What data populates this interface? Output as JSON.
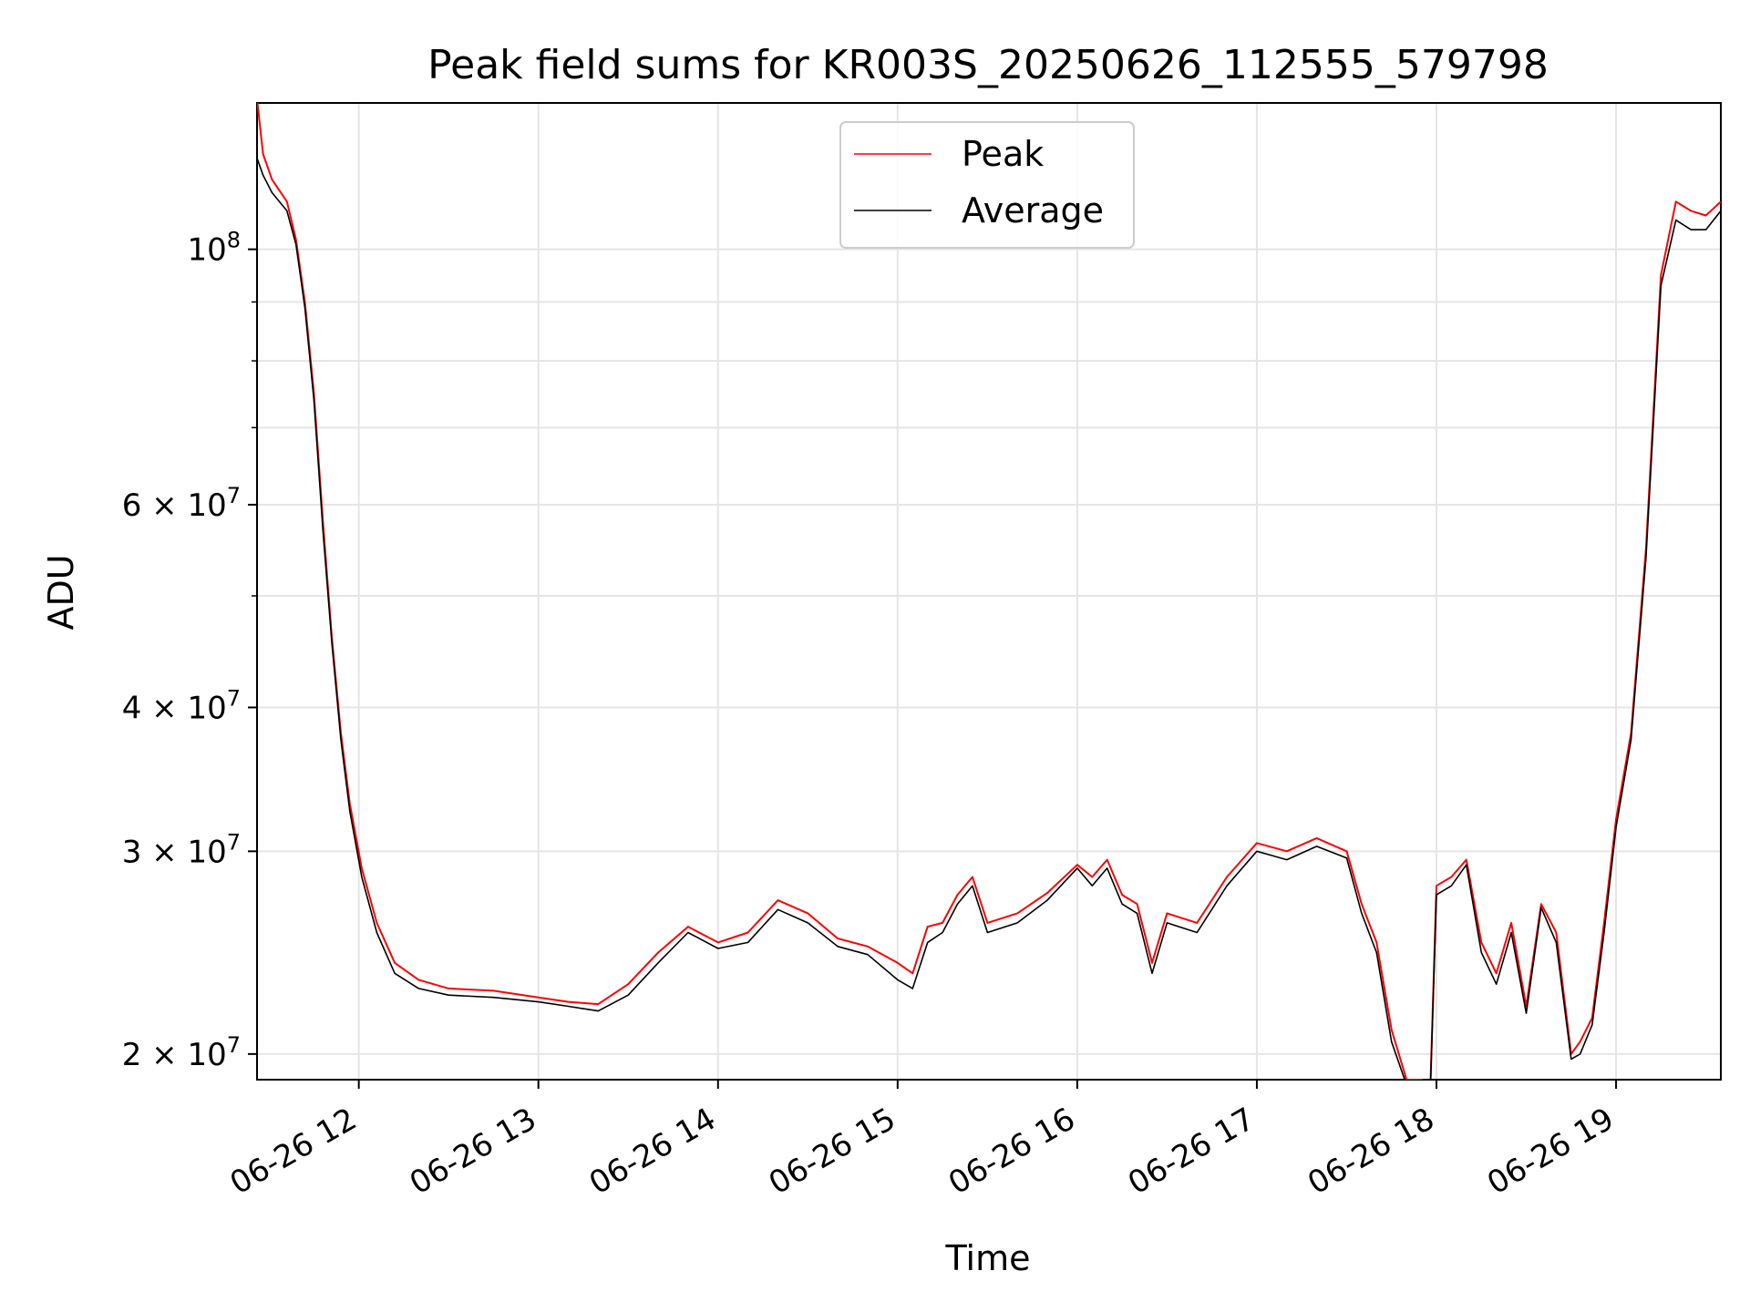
{
  "chart_data": {
    "type": "line",
    "title": "Peak field sums for KR003S_20250626_112555_579798",
    "xlabel": "Time",
    "ylabel": "ADU",
    "yscale": "log",
    "xlim": [
      "06-26 11:26",
      "06-26 19:35"
    ],
    "ylim": [
      19000000,
      134000000
    ],
    "grid": true,
    "legend_position": "top-center",
    "x_tick_labels": [
      "06-26 12",
      "06-26 13",
      "06-26 14",
      "06-26 15",
      "06-26 16",
      "06-26 17",
      "06-26 18",
      "06-26 19"
    ],
    "x_tick_times": [
      "06-26 12:00",
      "06-26 13:00",
      "06-26 14:00",
      "06-26 15:00",
      "06-26 16:00",
      "06-26 17:00",
      "06-26 18:00",
      "06-26 19:00"
    ],
    "y_major_ticks": [
      {
        "value": 20000000,
        "coef": "2",
        "exp": "7"
      },
      {
        "value": 30000000,
        "coef": "3",
        "exp": "7"
      },
      {
        "value": 40000000,
        "coef": "4",
        "exp": "7"
      },
      {
        "value": 60000000,
        "coef": "6",
        "exp": "7"
      },
      {
        "value": 100000000,
        "coef": "",
        "exp": "8"
      }
    ],
    "y_minor_gridlines": [
      50000000,
      70000000,
      80000000,
      90000000
    ],
    "series": [
      {
        "name": "Peak",
        "color": "#ff0000",
        "x": [
          "06-26 11:26",
          "06-26 11:28",
          "06-26 11:31",
          "06-26 11:36",
          "06-26 11:39",
          "06-26 11:42",
          "06-26 11:45",
          "06-26 11:48",
          "06-26 11:51",
          "06-26 11:54",
          "06-26 11:57",
          "06-26 12:01",
          "06-26 12:06",
          "06-26 12:12",
          "06-26 12:20",
          "06-26 12:30",
          "06-26 12:45",
          "06-26 13:00",
          "06-26 13:10",
          "06-26 13:20",
          "06-26 13:30",
          "06-26 13:40",
          "06-26 13:50",
          "06-26 14:00",
          "06-26 14:10",
          "06-26 14:20",
          "06-26 14:30",
          "06-26 14:40",
          "06-26 14:50",
          "06-26 15:00",
          "06-26 15:05",
          "06-26 15:10",
          "06-26 15:15",
          "06-26 15:20",
          "06-26 15:25",
          "06-26 15:30",
          "06-26 15:40",
          "06-26 15:50",
          "06-26 16:00",
          "06-26 16:05",
          "06-26 16:10",
          "06-26 16:15",
          "06-26 16:20",
          "06-26 16:25",
          "06-26 16:30",
          "06-26 16:40",
          "06-26 16:50",
          "06-26 17:00",
          "06-26 17:10",
          "06-26 17:20",
          "06-26 17:30",
          "06-26 17:35",
          "06-26 17:40",
          "06-26 17:45",
          "06-26 17:50",
          "06-26 17:55",
          "06-26 17:58",
          "06-26 18:00",
          "06-26 18:05",
          "06-26 18:10",
          "06-26 18:15",
          "06-26 18:20",
          "06-26 18:25",
          "06-26 18:30",
          "06-26 18:35",
          "06-26 18:40",
          "06-26 18:45",
          "06-26 18:48",
          "06-26 18:52",
          "06-26 18:56",
          "06-26 19:00",
          "06-26 19:05",
          "06-26 19:10",
          "06-26 19:15",
          "06-26 19:20",
          "06-26 19:25",
          "06-26 19:30",
          "06-26 19:35"
        ],
        "values": [
          135000000,
          121000000,
          115000000,
          110000000,
          102000000,
          90000000,
          75000000,
          58000000,
          46000000,
          38000000,
          33000000,
          29000000,
          26000000,
          24000000,
          23200000,
          22800000,
          22700000,
          22400000,
          22200000,
          22100000,
          23000000,
          24500000,
          25800000,
          25000000,
          25500000,
          27200000,
          26500000,
          25200000,
          24800000,
          24000000,
          23500000,
          25800000,
          26000000,
          27500000,
          28500000,
          26000000,
          26500000,
          27600000,
          29200000,
          28500000,
          29500000,
          27500000,
          27000000,
          24000000,
          26500000,
          26000000,
          28500000,
          30500000,
          30000000,
          30800000,
          30000000,
          27000000,
          25000000,
          21000000,
          19000000,
          19000000,
          18800000,
          28000000,
          28500000,
          29500000,
          25000000,
          23500000,
          26000000,
          22000000,
          27000000,
          25500000,
          20000000,
          20500000,
          21500000,
          26000000,
          32000000,
          38000000,
          55000000,
          95000000,
          110000000,
          108000000,
          107000000,
          110000000
        ]
      },
      {
        "name": "Average",
        "color": "#000000",
        "x": [
          "06-26 11:26",
          "06-26 11:28",
          "06-26 11:31",
          "06-26 11:36",
          "06-26 11:39",
          "06-26 11:42",
          "06-26 11:45",
          "06-26 11:48",
          "06-26 11:51",
          "06-26 11:54",
          "06-26 11:57",
          "06-26 12:01",
          "06-26 12:06",
          "06-26 12:12",
          "06-26 12:20",
          "06-26 12:30",
          "06-26 12:45",
          "06-26 13:00",
          "06-26 13:10",
          "06-26 13:20",
          "06-26 13:30",
          "06-26 13:40",
          "06-26 13:50",
          "06-26 14:00",
          "06-26 14:10",
          "06-26 14:20",
          "06-26 14:30",
          "06-26 14:40",
          "06-26 14:50",
          "06-26 15:00",
          "06-26 15:05",
          "06-26 15:10",
          "06-26 15:15",
          "06-26 15:20",
          "06-26 15:25",
          "06-26 15:30",
          "06-26 15:40",
          "06-26 15:50",
          "06-26 16:00",
          "06-26 16:05",
          "06-26 16:10",
          "06-26 16:15",
          "06-26 16:20",
          "06-26 16:25",
          "06-26 16:30",
          "06-26 16:40",
          "06-26 16:50",
          "06-26 17:00",
          "06-26 17:10",
          "06-26 17:20",
          "06-26 17:30",
          "06-26 17:35",
          "06-26 17:40",
          "06-26 17:45",
          "06-26 17:50",
          "06-26 17:55",
          "06-26 17:58",
          "06-26 18:00",
          "06-26 18:05",
          "06-26 18:10",
          "06-26 18:15",
          "06-26 18:20",
          "06-26 18:25",
          "06-26 18:30",
          "06-26 18:35",
          "06-26 18:40",
          "06-26 18:45",
          "06-26 18:48",
          "06-26 18:52",
          "06-26 18:56",
          "06-26 19:00",
          "06-26 19:05",
          "06-26 19:10",
          "06-26 19:15",
          "06-26 19:20",
          "06-26 19:25",
          "06-26 19:30",
          "06-26 19:35"
        ],
        "values": [
          120000000,
          116000000,
          112000000,
          108000000,
          101000000,
          89000000,
          74000000,
          57000000,
          45500000,
          37500000,
          32500000,
          28500000,
          25500000,
          23500000,
          22800000,
          22500000,
          22400000,
          22200000,
          22000000,
          21800000,
          22500000,
          24000000,
          25500000,
          24700000,
          25000000,
          26700000,
          26000000,
          24800000,
          24400000,
          23200000,
          22800000,
          25000000,
          25500000,
          27000000,
          28000000,
          25500000,
          26000000,
          27200000,
          29000000,
          28000000,
          29000000,
          27000000,
          26500000,
          23500000,
          26000000,
          25500000,
          28000000,
          30000000,
          29500000,
          30300000,
          29600000,
          26500000,
          24500000,
          20500000,
          18800000,
          18800000,
          18700000,
          27500000,
          28000000,
          29200000,
          24500000,
          23000000,
          25500000,
          21700000,
          26800000,
          25000000,
          19800000,
          20000000,
          21200000,
          25500000,
          31500000,
          37500000,
          54000000,
          93000000,
          106000000,
          104000000,
          104000000,
          108000000
        ]
      }
    ]
  }
}
